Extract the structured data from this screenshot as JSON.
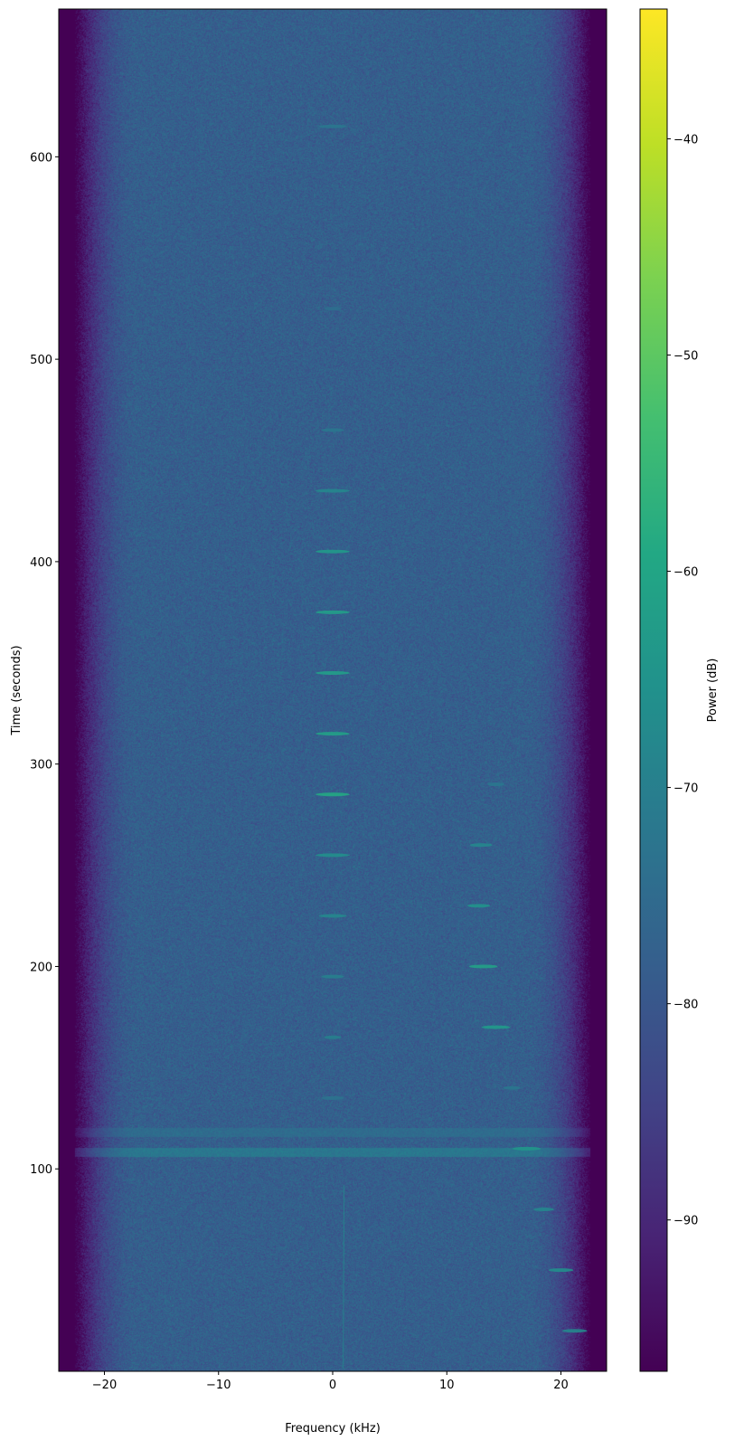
{
  "chart_data": {
    "type": "heatmap",
    "xlabel": "Frequency (kHz)",
    "ylabel": "Time (seconds)",
    "colorbar_label": "Power (dB)",
    "colormap": "viridis",
    "xlim": [
      -24,
      24
    ],
    "ylim": [
      0,
      673
    ],
    "clim": [
      -97,
      -34
    ],
    "xticks": [
      -20,
      -10,
      0,
      10,
      20
    ],
    "yticks": [
      100,
      200,
      300,
      400,
      500,
      600
    ],
    "cticks": [
      -40,
      -50,
      -60,
      -70,
      -80,
      -90
    ],
    "background_power_db": -78,
    "passband_khz": [
      -19,
      19
    ],
    "bursts": [
      {
        "time": 615,
        "freq": 0,
        "width_khz": 2.5,
        "power": -72
      },
      {
        "time": 525,
        "freq": 0,
        "width_khz": 1.5,
        "power": -74
      },
      {
        "time": 465,
        "freq": 0,
        "width_khz": 2,
        "power": -72
      },
      {
        "time": 435,
        "freq": 0,
        "width_khz": 3,
        "power": -68
      },
      {
        "time": 405,
        "freq": 0,
        "width_khz": 3,
        "power": -63
      },
      {
        "time": 375,
        "freq": 0,
        "width_khz": 3,
        "power": -62
      },
      {
        "time": 345,
        "freq": 0,
        "width_khz": 3,
        "power": -62
      },
      {
        "time": 315,
        "freq": 0,
        "width_khz": 3,
        "power": -61
      },
      {
        "time": 285,
        "freq": 0,
        "width_khz": 3,
        "power": -59
      },
      {
        "time": 255,
        "freq": 0,
        "width_khz": 3,
        "power": -66
      },
      {
        "time": 225,
        "freq": 0,
        "width_khz": 2.5,
        "power": -68
      },
      {
        "time": 195,
        "freq": 0,
        "width_khz": 2,
        "power": -70
      },
      {
        "time": 165,
        "freq": 0,
        "width_khz": 1.5,
        "power": -70
      },
      {
        "time": 135,
        "freq": 0,
        "width_khz": 2,
        "power": -73
      },
      {
        "time": 290,
        "freq": 14.3,
        "width_khz": 1.5,
        "power": -72
      },
      {
        "time": 260,
        "freq": 13,
        "width_khz": 2,
        "power": -68
      },
      {
        "time": 230,
        "freq": 12.8,
        "width_khz": 2,
        "power": -65
      },
      {
        "time": 200,
        "freq": 13.2,
        "width_khz": 2.5,
        "power": -61
      },
      {
        "time": 170,
        "freq": 14.3,
        "width_khz": 2.5,
        "power": -63
      },
      {
        "time": 140,
        "freq": 15.7,
        "width_khz": 1.5,
        "power": -72
      },
      {
        "time": 110,
        "freq": 17,
        "width_khz": 2.5,
        "power": -64
      },
      {
        "time": 80,
        "freq": 18.5,
        "width_khz": 1.8,
        "power": -68
      },
      {
        "time": 50,
        "freq": 20,
        "width_khz": 2.2,
        "power": -66
      },
      {
        "time": 20,
        "freq": 21.2,
        "width_khz": 2.2,
        "power": -68
      }
    ],
    "bands": [
      {
        "time": 108,
        "power": -72
      },
      {
        "time": 118,
        "power": -75
      }
    ],
    "lines": [
      {
        "freq": 1,
        "time_range": [
          0,
          92
        ],
        "power": -70
      }
    ]
  }
}
